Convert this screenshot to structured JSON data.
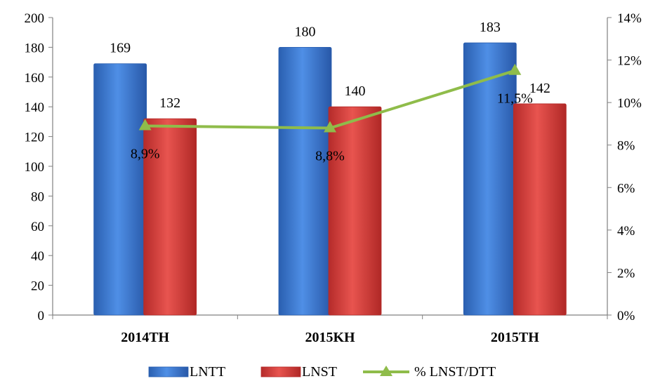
{
  "chart_data": {
    "type": "bar",
    "categories": [
      "2014TH",
      "2015KH",
      "2015TH"
    ],
    "series": [
      {
        "name": "LNTT",
        "type": "bar",
        "axis": "left",
        "values": [
          169,
          180,
          183
        ],
        "labels": [
          "169",
          "180",
          "183"
        ],
        "color": "#3a78d0"
      },
      {
        "name": "LNST",
        "type": "bar",
        "axis": "left",
        "values": [
          132,
          140,
          142
        ],
        "labels": [
          "132",
          "140",
          "142"
        ],
        "color": "#d9403e"
      },
      {
        "name": "% LNST/DTT",
        "type": "line",
        "axis": "right",
        "values": [
          8.9,
          8.8,
          11.5
        ],
        "labels": [
          "8,9%",
          "8,8%",
          "11,5%"
        ],
        "color": "#8fbc4a"
      }
    ],
    "y_left": {
      "min": 0,
      "max": 200,
      "ticks": [
        "0",
        "20",
        "40",
        "60",
        "80",
        "100",
        "120",
        "140",
        "160",
        "180",
        "200"
      ]
    },
    "y_right": {
      "min": 0,
      "max": 14,
      "ticks": [
        "0%",
        "2%",
        "4%",
        "6%",
        "8%",
        "10%",
        "12%",
        "14%"
      ]
    },
    "grid": false,
    "legend": "bottom"
  }
}
